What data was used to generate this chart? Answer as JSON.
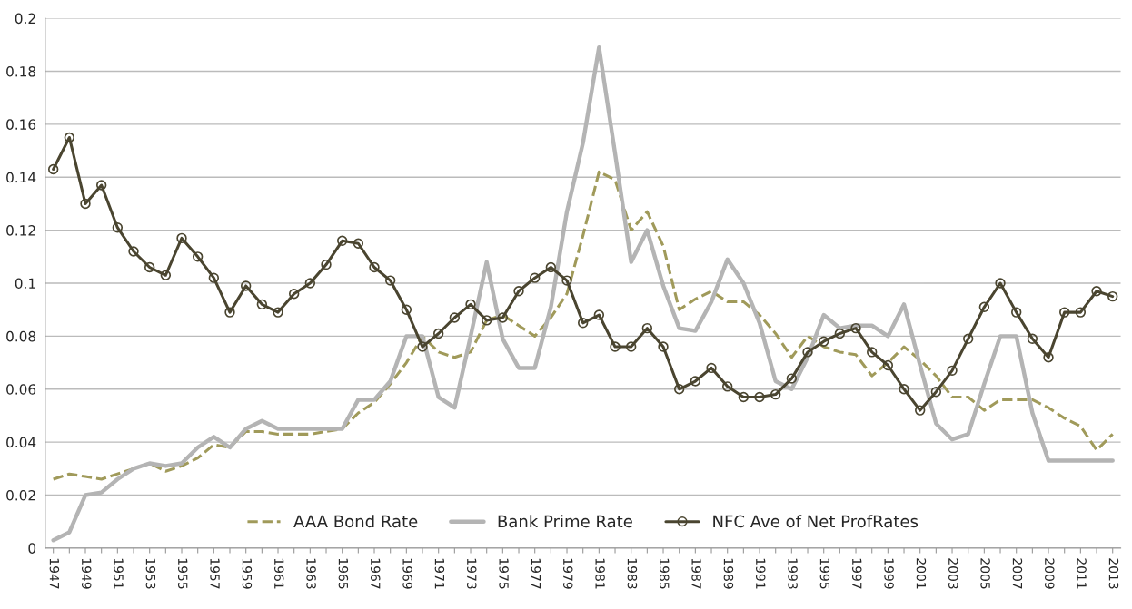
{
  "chart_data": {
    "type": "line",
    "categories": [
      "1947",
      null,
      "1949",
      null,
      "1951",
      null,
      "1953",
      null,
      "1955",
      null,
      "1957",
      null,
      "1959",
      null,
      "1961",
      null,
      "1963",
      null,
      "1965",
      null,
      "1967",
      null,
      "1969",
      null,
      "1971",
      null,
      "1973",
      null,
      "1975",
      null,
      "1977",
      null,
      "1979",
      null,
      "1981",
      null,
      "1983",
      null,
      "1985",
      null,
      "1987",
      null,
      "1989",
      null,
      "1991",
      null,
      "1993",
      null,
      "1995",
      null,
      "1997",
      null,
      "1999",
      null,
      "2001",
      null,
      "2003",
      null,
      "2005",
      null,
      "2007",
      null,
      "2009",
      null,
      "2011",
      null,
      "2013"
    ],
    "series": [
      {
        "name": "AAA Bond Rate",
        "color": "#a09a5a",
        "line_style": "dashed",
        "marker": "none",
        "values": [
          0.026,
          0.028,
          0.027,
          0.026,
          0.028,
          0.03,
          0.032,
          0.029,
          0.031,
          0.034,
          0.039,
          0.038,
          0.044,
          0.044,
          0.043,
          0.043,
          0.043,
          0.044,
          0.045,
          0.051,
          0.055,
          0.062,
          0.07,
          0.08,
          0.074,
          0.072,
          0.074,
          0.086,
          0.088,
          0.084,
          0.08,
          0.087,
          0.096,
          0.118,
          0.142,
          0.139,
          0.12,
          0.127,
          0.114,
          0.09,
          0.094,
          0.097,
          0.093,
          0.093,
          0.088,
          0.081,
          0.072,
          0.08,
          0.076,
          0.074,
          0.073,
          0.065,
          0.07,
          0.076,
          0.071,
          0.065,
          0.057,
          0.057,
          0.052,
          0.056,
          0.056,
          0.056,
          0.053,
          0.049,
          0.046,
          0.037,
          0.043
        ]
      },
      {
        "name": "Bank Prime Rate",
        "color": "#b4b4b4",
        "line_style": "solid",
        "marker": "none",
        "values": [
          0.003,
          0.006,
          0.02,
          0.021,
          0.026,
          0.03,
          0.032,
          0.031,
          0.032,
          0.038,
          0.042,
          0.038,
          0.045,
          0.048,
          0.045,
          0.045,
          0.045,
          0.045,
          0.045,
          0.056,
          0.056,
          0.063,
          0.08,
          0.08,
          0.057,
          0.053,
          0.08,
          0.108,
          0.079,
          0.068,
          0.068,
          0.091,
          0.127,
          0.153,
          0.189,
          0.149,
          0.108,
          0.12,
          0.099,
          0.083,
          0.082,
          0.093,
          0.109,
          0.1,
          0.085,
          0.063,
          0.06,
          0.072,
          0.088,
          0.083,
          0.084,
          0.084,
          0.08,
          0.092,
          0.069,
          0.047,
          0.041,
          0.043,
          0.062,
          0.08,
          0.08,
          0.051,
          0.033,
          0.033,
          0.033,
          0.033,
          0.033
        ]
      },
      {
        "name": "NFC Ave of Net ProfRates",
        "color": "#4a4530",
        "line_style": "solid",
        "marker": "circle",
        "values": [
          0.143,
          0.155,
          0.13,
          0.137,
          0.121,
          0.112,
          0.106,
          0.103,
          0.117,
          0.11,
          0.102,
          0.089,
          0.099,
          0.092,
          0.089,
          0.096,
          0.1,
          0.107,
          0.116,
          0.115,
          0.106,
          0.101,
          0.09,
          0.076,
          0.081,
          0.087,
          0.092,
          0.086,
          0.087,
          0.097,
          0.102,
          0.106,
          0.101,
          0.085,
          0.088,
          0.076,
          0.076,
          0.083,
          0.076,
          0.06,
          0.063,
          0.068,
          0.061,
          0.057,
          0.057,
          0.058,
          0.064,
          0.074,
          0.078,
          0.081,
          0.083,
          0.074,
          0.069,
          0.06,
          0.052,
          0.059,
          0.067,
          0.079,
          0.091,
          0.1,
          0.089,
          0.079,
          0.072,
          0.089,
          0.089,
          0.097,
          0.095
        ]
      }
    ],
    "ylim": [
      0,
      0.2
    ],
    "yticks": [
      0,
      0.02,
      0.04,
      0.06,
      0.08,
      0.1,
      0.12,
      0.14,
      0.16,
      0.18,
      0.2
    ],
    "grid": "y",
    "legend": "bottom"
  }
}
